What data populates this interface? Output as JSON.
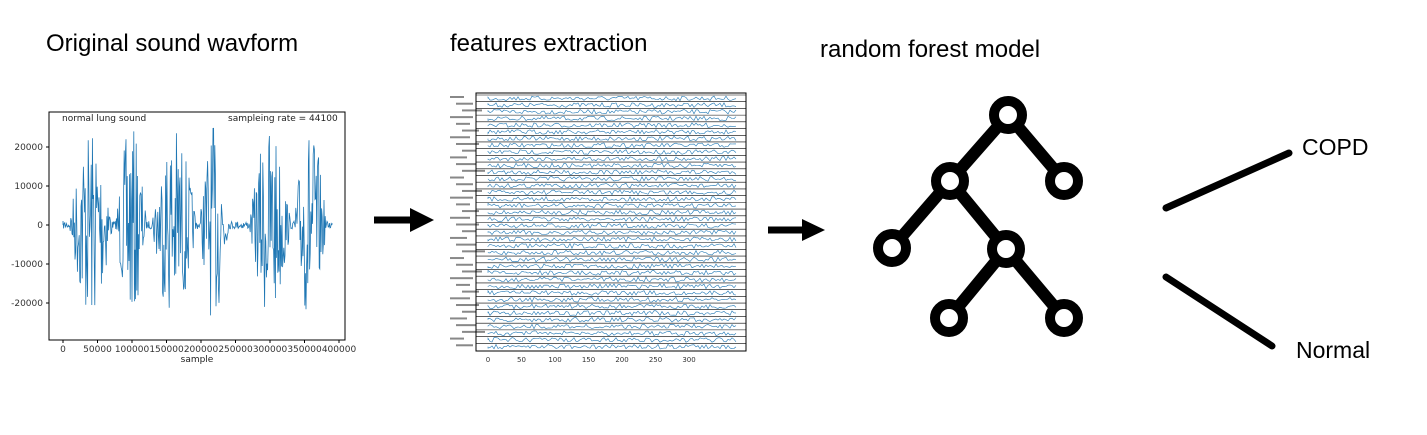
{
  "stages": {
    "waveform_title": "Original sound wavform",
    "features_title": "features extraction",
    "model_title": "random forest model"
  },
  "outcomes": {
    "copd": "COPD",
    "normal": "Normal"
  },
  "colors": {
    "series": "#1f77b4",
    "ink": "#000000"
  },
  "waveform_plot": {
    "annotation_left": "normal lung sound",
    "annotation_right": "sampleing rate = 44100",
    "xlabel": "sample",
    "x_ticks": [
      "0",
      "50000",
      "100000",
      "150000",
      "200000",
      "250000",
      "300000",
      "350000",
      "400000"
    ],
    "y_ticks": [
      "20000",
      "10000",
      "0",
      "-10000",
      "-20000"
    ]
  },
  "features_plot": {
    "x_ticks": [
      "0",
      "50",
      "100",
      "150",
      "200",
      "250",
      "300"
    ]
  }
}
